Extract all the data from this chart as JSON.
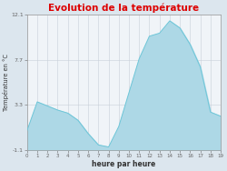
{
  "title": "Evolution de la température",
  "xlabel": "heure par heure",
  "ylabel": "Température en °C",
  "hours": [
    0,
    1,
    2,
    3,
    4,
    5,
    6,
    7,
    8,
    9,
    10,
    11,
    12,
    13,
    14,
    15,
    16,
    17,
    18,
    19
  ],
  "temperatures": [
    0.8,
    3.6,
    3.2,
    2.8,
    2.5,
    1.8,
    0.5,
    -0.6,
    -0.8,
    1.2,
    4.5,
    7.8,
    10.0,
    10.3,
    11.5,
    10.8,
    9.2,
    7.0,
    2.6,
    2.2
  ],
  "ylim": [
    -1.1,
    12.1
  ],
  "xlim": [
    0,
    19
  ],
  "yticks": [
    -1.1,
    3.3,
    7.7,
    12.1
  ],
  "ytick_labels": [
    "-1.1",
    "3.3",
    "7.7",
    "12.1"
  ],
  "xticks": [
    0,
    1,
    2,
    3,
    4,
    5,
    6,
    7,
    8,
    9,
    10,
    11,
    12,
    13,
    14,
    15,
    16,
    17,
    18,
    19
  ],
  "xtick_labels": [
    "0",
    "1",
    "2",
    "3",
    "4",
    "5",
    "6",
    "7",
    "8",
    "9",
    "10",
    "11",
    "12",
    "13",
    "14",
    "15",
    "16",
    "17",
    "18",
    "19"
  ],
  "fill_color": "#add8e6",
  "line_color": "#6ec6d8",
  "title_color": "#dd0000",
  "bg_color": "#dce6ee",
  "plot_bg_color": "#f0f4f8",
  "grid_color": "#c8d0d8",
  "tick_label_color": "#666666",
  "axis_label_color": "#333333",
  "spine_color": "#999999"
}
